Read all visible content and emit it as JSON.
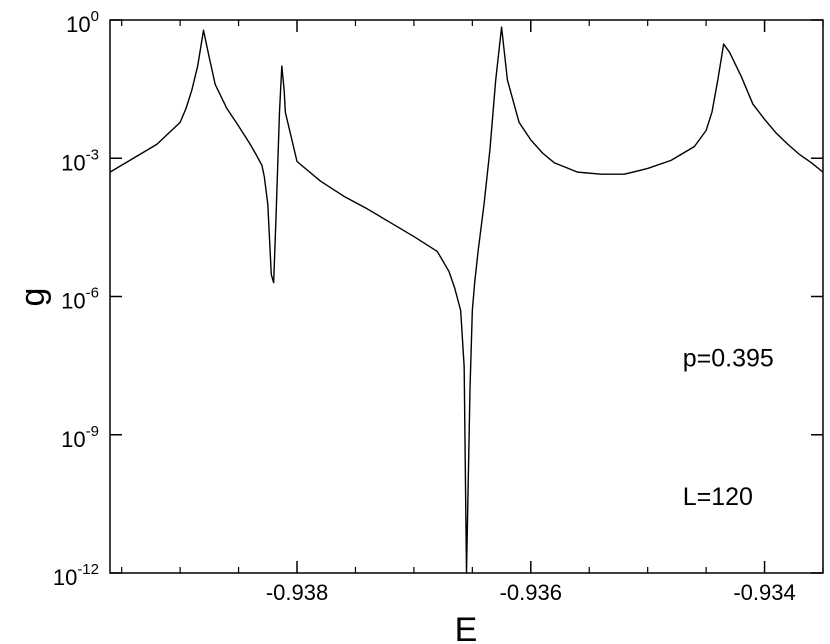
{
  "chart_data": {
    "type": "line",
    "title": "",
    "xlabel": "E",
    "ylabel": "g",
    "xlim": [
      -0.9396,
      -0.9335
    ],
    "ylim": [
      1e-12,
      1
    ],
    "yscale": "log",
    "grid": false,
    "x_ticks": [
      {
        "value": -0.938,
        "label": "-0.938"
      },
      {
        "value": -0.936,
        "label": "-0.936"
      },
      {
        "value": -0.934,
        "label": "-0.934"
      }
    ],
    "y_ticks": [
      {
        "value": 1,
        "base": "10",
        "exp": "0"
      },
      {
        "value": 0.001,
        "base": "10",
        "exp": "-3"
      },
      {
        "value": 1e-06,
        "base": "10",
        "exp": "-6"
      },
      {
        "value": 1e-09,
        "base": "10",
        "exp": "-9"
      },
      {
        "value": 1e-12,
        "base": "10",
        "exp": "-12"
      }
    ],
    "annotations": [
      {
        "text": "p=0.395",
        "x": -0.9347,
        "y": 3e-08
      },
      {
        "text": "L=120",
        "x": -0.9347,
        "y": 3e-11
      }
    ],
    "series": [
      {
        "x": [
          -0.9396,
          -0.9394,
          -0.9392,
          -0.939,
          -0.93895,
          -0.9389,
          -0.93885,
          -0.9388,
          -0.93875,
          -0.9387,
          -0.9386,
          -0.9385,
          -0.9384,
          -0.93835,
          -0.9383,
          -0.93828,
          -0.93825,
          -0.93822,
          -0.9382,
          -0.93818,
          -0.93815,
          -0.93813,
          -0.93811,
          -0.9381,
          -0.938,
          -0.9378,
          -0.9376,
          -0.9374,
          -0.9372,
          -0.937,
          -0.9368,
          -0.9367,
          -0.93665,
          -0.9366,
          -0.93657,
          -0.93655,
          -0.93652,
          -0.9365,
          -0.93648,
          -0.93645,
          -0.9364,
          -0.93635,
          -0.9363,
          -0.93625,
          -0.9362,
          -0.9361,
          -0.936,
          -0.9359,
          -0.9358,
          -0.9356,
          -0.9354,
          -0.9352,
          -0.935,
          -0.9348,
          -0.9346,
          -0.9345,
          -0.93445,
          -0.9344,
          -0.93435,
          -0.9343,
          -0.9342,
          -0.9341,
          -0.934,
          -0.9339,
          -0.9338,
          -0.9337,
          -0.9336,
          -0.9335
        ],
        "y": [
          0.0005,
          0.001,
          0.002,
          0.006,
          0.012,
          0.03,
          0.1,
          0.6,
          0.15,
          0.04,
          0.012,
          0.005,
          0.002,
          0.0012,
          0.0007,
          0.0004,
          0.0001,
          3e-06,
          2e-06,
          5e-05,
          0.01,
          0.1,
          0.03,
          0.01,
          0.00085,
          0.00032,
          0.00015,
          8e-05,
          4e-05,
          2e-05,
          9.5e-06,
          3.5e-06,
          1.5e-06,
          5e-07,
          3e-08,
          1e-12,
          1e-08,
          5e-07,
          2e-06,
          1e-05,
          0.0001,
          0.0015,
          0.05,
          0.7,
          0.05,
          0.006,
          0.0025,
          0.0013,
          0.0008,
          0.0005,
          0.00045,
          0.00045,
          0.0006,
          0.0009,
          0.0018,
          0.004,
          0.01,
          0.05,
          0.3,
          0.2,
          0.06,
          0.015,
          0.007,
          0.0035,
          0.002,
          0.0012,
          0.0008,
          0.0005
        ]
      }
    ]
  }
}
